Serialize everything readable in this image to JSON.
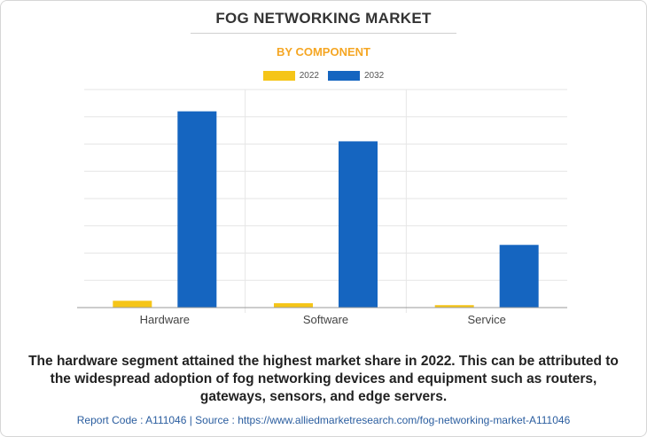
{
  "colors": {
    "series_2022": "#f5c518",
    "series_2032": "#1565c0",
    "subtitle": "#f5a623",
    "grid": "#e6e6e6",
    "axis": "#9a9a9a"
  },
  "chart_data": {
    "type": "bar",
    "title": "FOG NETWORKING MARKET",
    "subtitle": "BY COMPONENT",
    "categories": [
      "Hardware",
      "Software",
      "Service"
    ],
    "series": [
      {
        "name": "2022",
        "values": [
          2.5,
          1.6,
          0.9
        ]
      },
      {
        "name": "2032",
        "values": [
          72,
          61,
          23
        ]
      }
    ],
    "ylim": [
      0,
      80
    ],
    "grid": true,
    "legend": "top-center",
    "xlabel": "",
    "ylabel": ""
  },
  "caption": "The hardware segment attained the highest market share in 2022. This can be attributed to the widespread adoption of fog networking devices and equipment such as routers, gateways, sensors, and edge servers.",
  "footer": "Report Code : A111046  |  Source : https://www.alliedmarketresearch.com/fog-networking-market-A111046"
}
